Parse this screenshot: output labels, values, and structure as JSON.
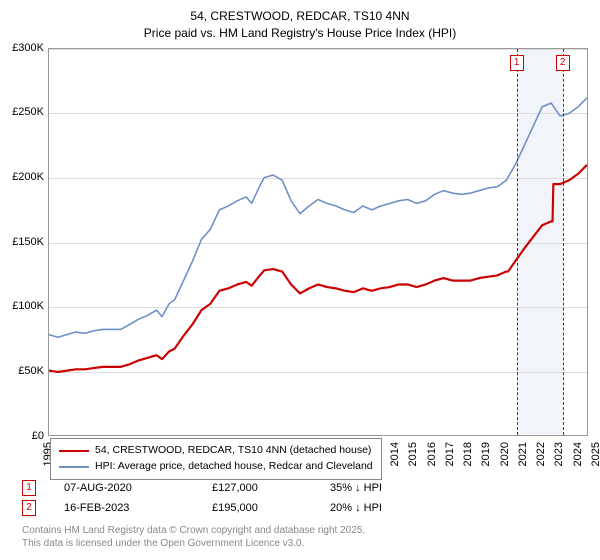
{
  "title": {
    "line1": "54, CRESTWOOD, REDCAR, TS10 4NN",
    "line2": "Price paid vs. HM Land Registry's House Price Index (HPI)"
  },
  "chart": {
    "type": "line",
    "background_color": "#ffffff",
    "grid_color": "#dddddd",
    "axis_color": "#999999",
    "y_axis": {
      "min": 0,
      "max": 300000,
      "tick_step": 50000,
      "labels": [
        "£0",
        "£50K",
        "£100K",
        "£150K",
        "£200K",
        "£250K",
        "£300K"
      ],
      "label_fontsize": 11
    },
    "x_axis": {
      "min": 1995,
      "max": 2025,
      "labels": [
        "1995",
        "1996",
        "1997",
        "1998",
        "1999",
        "2000",
        "2001",
        "2002",
        "2003",
        "2004",
        "2005",
        "2006",
        "2007",
        "2008",
        "2009",
        "2010",
        "2011",
        "2012",
        "2013",
        "2014",
        "2015",
        "2016",
        "2017",
        "2018",
        "2019",
        "2020",
        "2021",
        "2022",
        "2023",
        "2024",
        "2025"
      ],
      "label_fontsize": 11
    },
    "shade_band": {
      "x_start": 2020.6,
      "x_end": 2023.12,
      "color": "#e8eef5"
    },
    "markers": [
      {
        "id": "1",
        "x": 2020.6
      },
      {
        "id": "2",
        "x": 2023.12
      }
    ],
    "series": [
      {
        "name": "hpi",
        "label": "HPI: Average price, detached house, Redcar and Cleveland",
        "color": "#6f8fc7",
        "line_width": 1.6,
        "data": [
          [
            1995,
            78000
          ],
          [
            1995.5,
            76000
          ],
          [
            1996,
            78000
          ],
          [
            1996.5,
            80000
          ],
          [
            1997,
            79000
          ],
          [
            1997.5,
            81000
          ],
          [
            1998,
            82000
          ],
          [
            1998.5,
            82000
          ],
          [
            1999,
            82000
          ],
          [
            1999.5,
            86000
          ],
          [
            2000,
            90000
          ],
          [
            2000.5,
            93000
          ],
          [
            2001,
            97000
          ],
          [
            2001.3,
            92000
          ],
          [
            2001.7,
            102000
          ],
          [
            2002,
            105000
          ],
          [
            2002.5,
            120000
          ],
          [
            2003,
            135000
          ],
          [
            2003.5,
            152000
          ],
          [
            2004,
            160000
          ],
          [
            2004.5,
            175000
          ],
          [
            2005,
            178000
          ],
          [
            2005.5,
            182000
          ],
          [
            2006,
            185000
          ],
          [
            2006.3,
            180000
          ],
          [
            2006.7,
            192000
          ],
          [
            2007,
            200000
          ],
          [
            2007.5,
            202000
          ],
          [
            2008,
            198000
          ],
          [
            2008.5,
            182000
          ],
          [
            2009,
            172000
          ],
          [
            2009.5,
            178000
          ],
          [
            2010,
            183000
          ],
          [
            2010.5,
            180000
          ],
          [
            2011,
            178000
          ],
          [
            2011.5,
            175000
          ],
          [
            2012,
            173000
          ],
          [
            2012.5,
            178000
          ],
          [
            2013,
            175000
          ],
          [
            2013.5,
            178000
          ],
          [
            2014,
            180000
          ],
          [
            2014.5,
            182000
          ],
          [
            2015,
            183000
          ],
          [
            2015.5,
            180000
          ],
          [
            2016,
            182000
          ],
          [
            2016.5,
            187000
          ],
          [
            2017,
            190000
          ],
          [
            2017.5,
            188000
          ],
          [
            2018,
            187000
          ],
          [
            2018.5,
            188000
          ],
          [
            2019,
            190000
          ],
          [
            2019.5,
            192000
          ],
          [
            2020,
            193000
          ],
          [
            2020.5,
            198000
          ],
          [
            2021,
            210000
          ],
          [
            2021.5,
            225000
          ],
          [
            2022,
            240000
          ],
          [
            2022.5,
            255000
          ],
          [
            2023,
            258000
          ],
          [
            2023.5,
            248000
          ],
          [
            2024,
            250000
          ],
          [
            2024.5,
            255000
          ],
          [
            2025,
            262000
          ]
        ]
      },
      {
        "name": "property",
        "label": "54, CRESTWOOD, REDCAR, TS10 4NN (detached house)",
        "color": "#cc0000",
        "line_width": 2.2,
        "data": [
          [
            1995,
            50000
          ],
          [
            1995.5,
            49000
          ],
          [
            1996,
            50000
          ],
          [
            1996.5,
            51000
          ],
          [
            1997,
            51000
          ],
          [
            1997.5,
            52000
          ],
          [
            1998,
            53000
          ],
          [
            1998.5,
            53000
          ],
          [
            1999,
            53000
          ],
          [
            1999.5,
            55000
          ],
          [
            2000,
            58000
          ],
          [
            2000.5,
            60000
          ],
          [
            2001,
            62000
          ],
          [
            2001.3,
            59000
          ],
          [
            2001.7,
            65000
          ],
          [
            2002,
            67000
          ],
          [
            2002.5,
            77000
          ],
          [
            2003,
            86000
          ],
          [
            2003.5,
            97000
          ],
          [
            2004,
            102000
          ],
          [
            2004.5,
            112000
          ],
          [
            2005,
            114000
          ],
          [
            2005.5,
            117000
          ],
          [
            2006,
            119000
          ],
          [
            2006.3,
            116000
          ],
          [
            2006.7,
            123000
          ],
          [
            2007,
            128000
          ],
          [
            2007.5,
            129000
          ],
          [
            2008,
            127000
          ],
          [
            2008.5,
            117000
          ],
          [
            2009,
            110000
          ],
          [
            2009.5,
            114000
          ],
          [
            2010,
            117000
          ],
          [
            2010.5,
            115000
          ],
          [
            2011,
            114000
          ],
          [
            2011.5,
            112000
          ],
          [
            2012,
            111000
          ],
          [
            2012.5,
            114000
          ],
          [
            2013,
            112000
          ],
          [
            2013.5,
            114000
          ],
          [
            2014,
            115000
          ],
          [
            2014.5,
            117000
          ],
          [
            2015,
            117000
          ],
          [
            2015.5,
            115000
          ],
          [
            2016,
            117000
          ],
          [
            2016.5,
            120000
          ],
          [
            2017,
            122000
          ],
          [
            2017.5,
            120000
          ],
          [
            2018,
            120000
          ],
          [
            2018.5,
            120000
          ],
          [
            2019,
            122000
          ],
          [
            2019.5,
            123000
          ],
          [
            2020,
            124000
          ],
          [
            2020.5,
            127000
          ],
          [
            2020.6,
            127000
          ],
          [
            2021,
            135000
          ],
          [
            2021.5,
            145000
          ],
          [
            2022,
            154000
          ],
          [
            2022.5,
            163000
          ],
          [
            2023,
            166000
          ],
          [
            2023.08,
            166000
          ],
          [
            2023.12,
            195000
          ],
          [
            2023.5,
            195000
          ],
          [
            2024,
            198000
          ],
          [
            2024.5,
            203000
          ],
          [
            2025,
            210000
          ]
        ]
      }
    ]
  },
  "legend": {
    "border_color": "#888888",
    "items": [
      {
        "series": "property",
        "color": "#cc0000",
        "label": "54, CRESTWOOD, REDCAR, TS10 4NN (detached house)"
      },
      {
        "series": "hpi",
        "color": "#6f8fc7",
        "label": "HPI: Average price, detached house, Redcar and Cleveland"
      }
    ]
  },
  "transactions": [
    {
      "id": "1",
      "date": "07-AUG-2020",
      "price": "£127,000",
      "pct": "35% ↓ HPI"
    },
    {
      "id": "2",
      "date": "16-FEB-2023",
      "price": "£195,000",
      "pct": "20% ↓ HPI"
    }
  ],
  "footer": {
    "line1": "Contains HM Land Registry data © Crown copyright and database right 2025.",
    "line2": "This data is licensed under the Open Government Licence v3.0."
  }
}
